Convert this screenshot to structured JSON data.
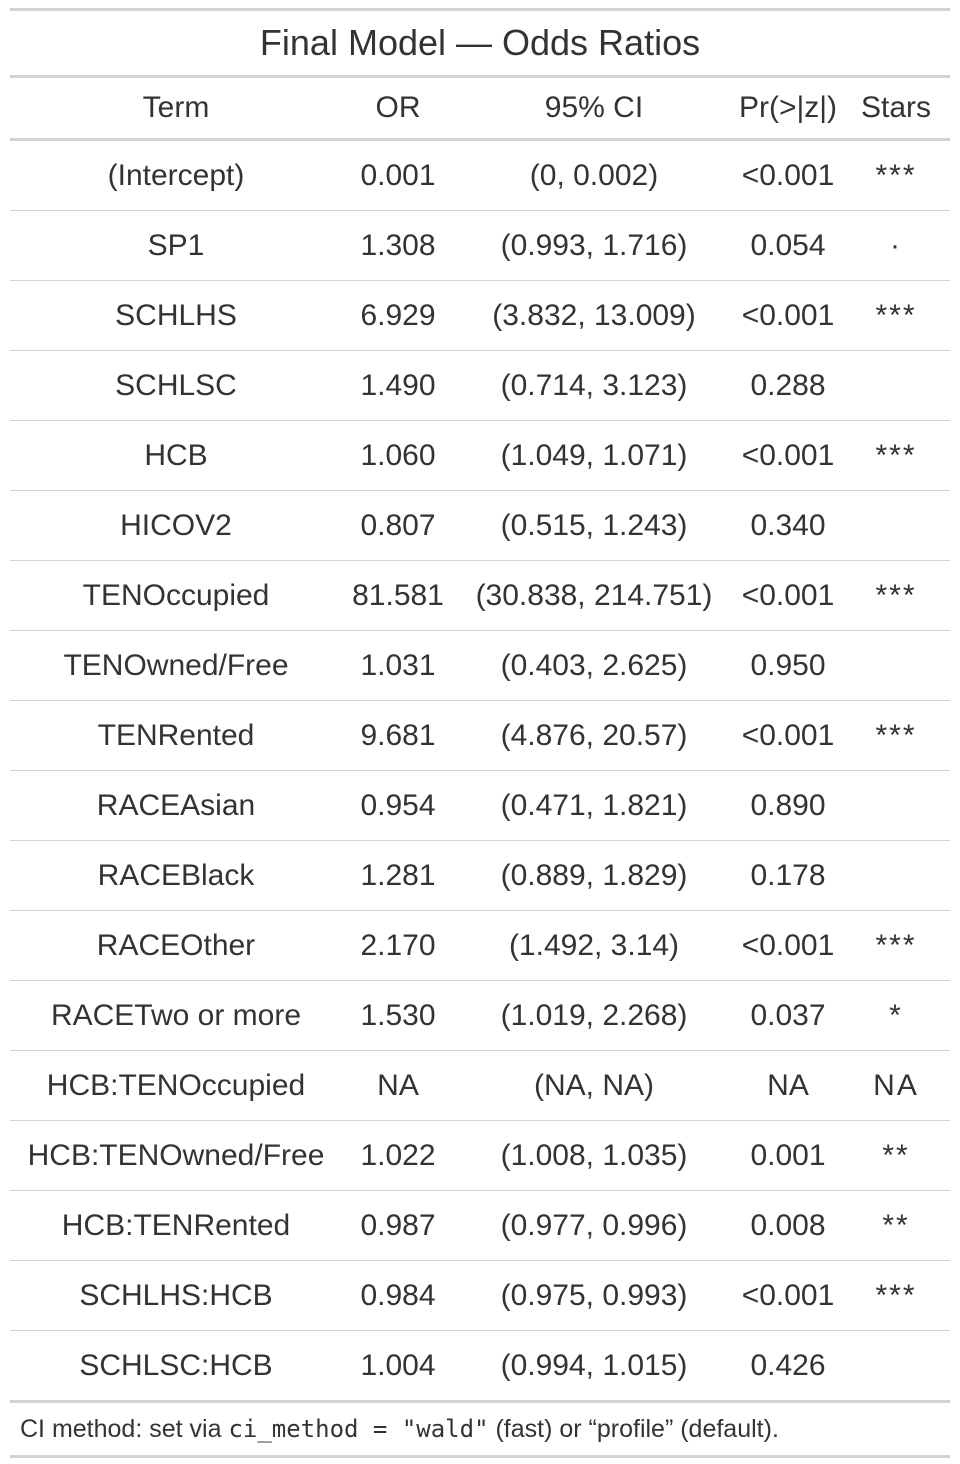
{
  "title": "Final Model — Odds Ratios",
  "columns": [
    "Term",
    "OR",
    "95% CI",
    "Pr(>|z|)",
    "Stars"
  ],
  "rows": [
    {
      "term": "(Intercept)",
      "or": "0.001",
      "ci": "(0, 0.002)",
      "p": "<0.001",
      "stars": "***"
    },
    {
      "term": "SP1",
      "or": "1.308",
      "ci": "(0.993, 1.716)",
      "p": "0.054",
      "stars": "·"
    },
    {
      "term": "SCHLHS",
      "or": "6.929",
      "ci": "(3.832, 13.009)",
      "p": "<0.001",
      "stars": "***"
    },
    {
      "term": "SCHLSC",
      "or": "1.490",
      "ci": "(0.714, 3.123)",
      "p": "0.288",
      "stars": ""
    },
    {
      "term": "HCB",
      "or": "1.060",
      "ci": "(1.049, 1.071)",
      "p": "<0.001",
      "stars": "***"
    },
    {
      "term": "HICOV2",
      "or": "0.807",
      "ci": "(0.515, 1.243)",
      "p": "0.340",
      "stars": ""
    },
    {
      "term": "TENOccupied",
      "or": "81.581",
      "ci": "(30.838, 214.751)",
      "p": "<0.001",
      "stars": "***"
    },
    {
      "term": "TENOwned/Free",
      "or": "1.031",
      "ci": "(0.403, 2.625)",
      "p": "0.950",
      "stars": ""
    },
    {
      "term": "TENRented",
      "or": "9.681",
      "ci": "(4.876, 20.57)",
      "p": "<0.001",
      "stars": "***"
    },
    {
      "term": "RACEAsian",
      "or": "0.954",
      "ci": "(0.471, 1.821)",
      "p": "0.890",
      "stars": ""
    },
    {
      "term": "RACEBlack",
      "or": "1.281",
      "ci": "(0.889, 1.829)",
      "p": "0.178",
      "stars": ""
    },
    {
      "term": "RACEOther",
      "or": "2.170",
      "ci": "(1.492, 3.14)",
      "p": "<0.001",
      "stars": "***"
    },
    {
      "term": "RACETwo or more",
      "or": "1.530",
      "ci": "(1.019, 2.268)",
      "p": "0.037",
      "stars": "*"
    },
    {
      "term": "HCB:TENOccupied",
      "or": "NA",
      "ci": "(NA, NA)",
      "p": "NA",
      "stars": "NA"
    },
    {
      "term": "HCB:TENOwned/Free",
      "or": "1.022",
      "ci": "(1.008, 1.035)",
      "p": "0.001",
      "stars": "**"
    },
    {
      "term": "HCB:TENRented",
      "or": "0.987",
      "ci": "(0.977, 0.996)",
      "p": "0.008",
      "stars": "**"
    },
    {
      "term": "SCHLHS:HCB",
      "or": "0.984",
      "ci": "(0.975, 0.993)",
      "p": "<0.001",
      "stars": "***"
    },
    {
      "term": "SCHLSC:HCB",
      "or": "1.004",
      "ci": "(0.994, 1.015)",
      "p": "0.426",
      "stars": ""
    }
  ],
  "footnote": {
    "prefix": "CI method: set via ",
    "code": "ci_method = \"wald\"",
    "suffix": " (fast) or “profile” (default)."
  }
}
